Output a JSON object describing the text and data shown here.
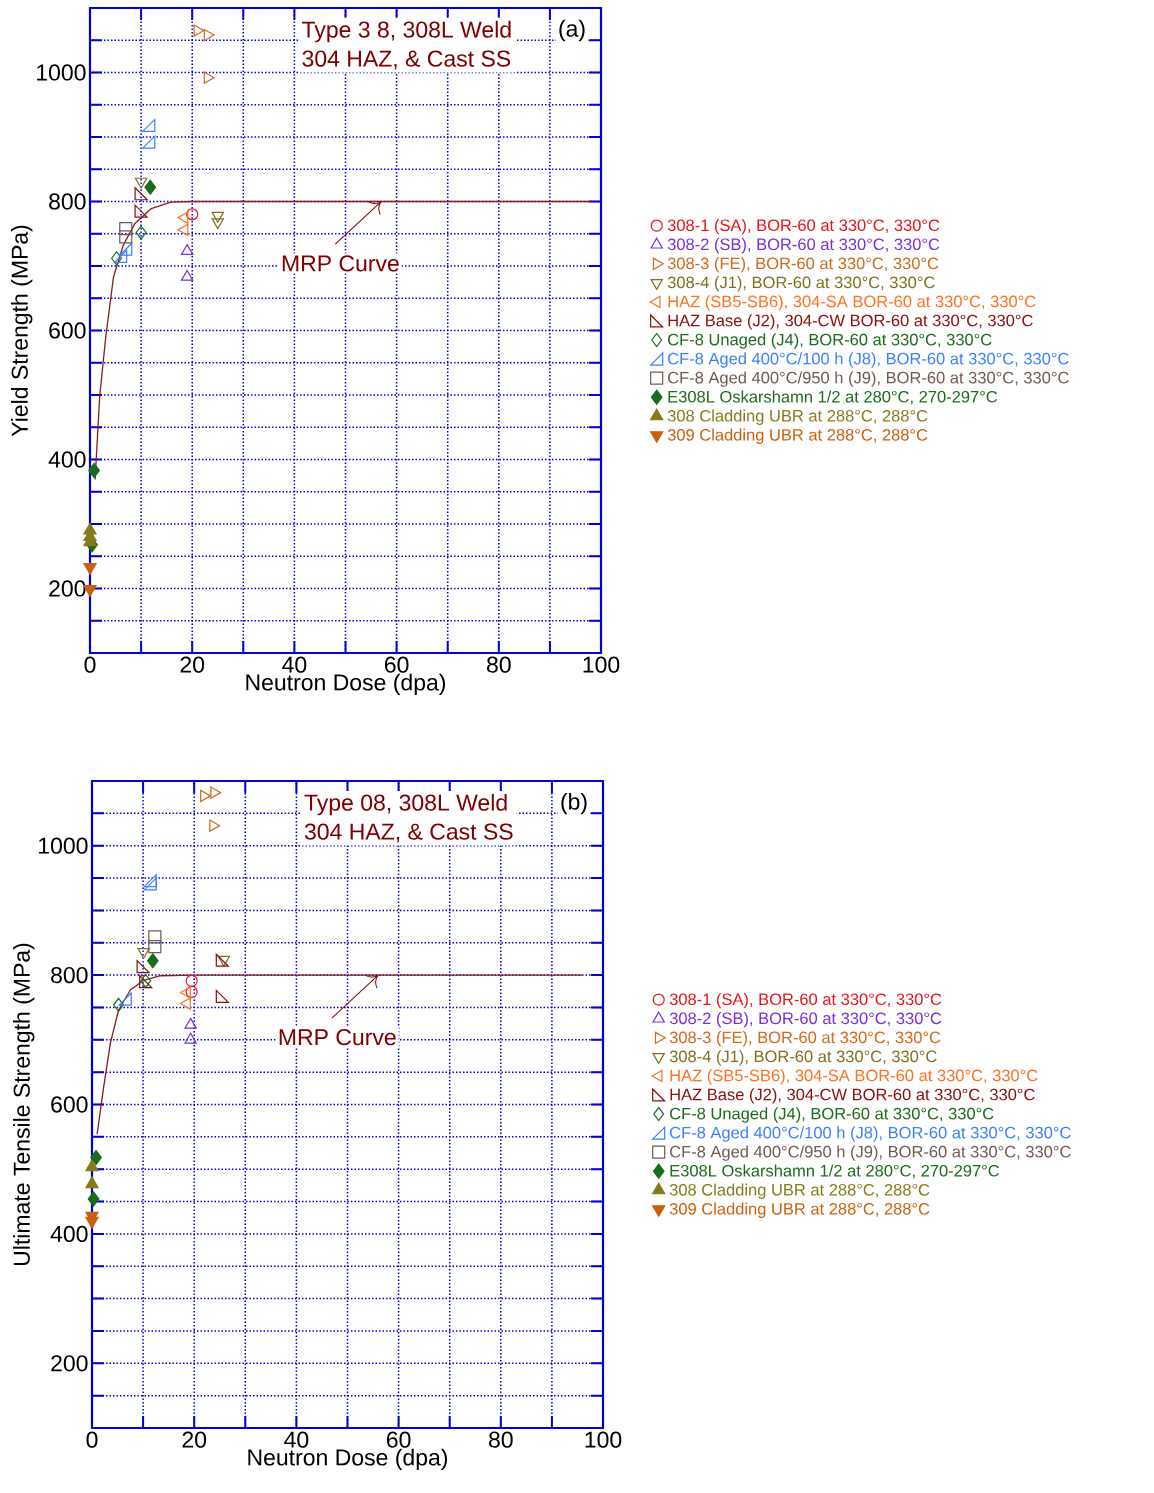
{
  "chart_data": [
    {
      "type": "scatter",
      "title": "Type 3  8, 308L Weld",
      "subtitle": "304 HAZ, & Cast SS",
      "xlabel": "Neutron Dose (dpa)",
      "ylabel": "Yield Strength (MPa)",
      "xlim": [
        0,
        100
      ],
      "ylim": [
        100,
        1100
      ],
      "xticks": [
        0,
        {
          "value": 10,
          "label": null
        },
        20,
        {
          "value": 30,
          "label": null
        },
        40,
        {
          "value": 50,
          "label": null
        },
        60,
        {
          "value": 70,
          "label": null
        },
        80,
        {
          "value": 90,
          "label": null
        },
        100
      ],
      "yticks": [
        {
          "value": 100,
          "label": null
        },
        {
          "value": 150,
          "label": null
        },
        200,
        {
          "value": 250,
          "label": null
        },
        {
          "value": 300,
          "label": null
        },
        {
          "value": 350,
          "label": null
        },
        400,
        {
          "value": 450,
          "label": null
        },
        {
          "value": 500,
          "label": null
        },
        {
          "value": 550,
          "label": null
        },
        600,
        {
          "value": 650,
          "label": null
        },
        {
          "value": 700,
          "label": null
        },
        {
          "value": 750,
          "label": null
        },
        800,
        {
          "value": 850,
          "label": null
        },
        {
          "value": 900,
          "label": null
        },
        {
          "value": 950,
          "label": null
        },
        1000,
        {
          "value": 1050,
          "label": null
        },
        {
          "value": 1100,
          "label": null
        }
      ],
      "grid": true,
      "legend": "right",
      "annotations": [
        {
          "text": "MRP Curve",
          "x": 57,
          "y": 800
        },
        "(a)"
      ],
      "series": [
        {
          "name": "308-1 (SA), BOR-60 at 330°C, 330°C",
          "color": "#e8131b",
          "marker": "circle",
          "x": [
            20
          ],
          "values": [
            780
          ]
        },
        {
          "name": "308-2 (SB), BOR-60 at 330°C, 330°C",
          "color": "#7a2ee0",
          "marker": "triangle",
          "x": [
            19,
            19
          ],
          "values": [
            723,
            683
          ]
        },
        {
          "name": "308-3 (FE), BOR-60 at 330°C, 330°C",
          "color": "#d2691e",
          "marker": "triangle-right",
          "x": [
            21,
            23,
            23
          ],
          "values": [
            1065,
            1058,
            992
          ]
        },
        {
          "name": "308-4 (J1), BOR-60 at 330°C, 330°C",
          "color": "#7f7020",
          "marker": "triangle-down",
          "x": [
            10,
            25,
            25
          ],
          "values": [
            831,
            778,
            768
          ]
        },
        {
          "name": "HAZ (SB5-SB6), 304-SA BOR-60 at 330°C, 330°C",
          "color": "#ff7020",
          "marker": "triangle-left",
          "x": [
            18.5,
            18.5
          ],
          "values": [
            775,
            756
          ]
        },
        {
          "name": "HAZ Base (J2), 304-CW BOR-60 at 330°C, 330°C",
          "color": "#8b1010",
          "marker": "triangle-bottom-left",
          "x": [
            10,
            10
          ],
          "values": [
            812,
            785
          ]
        },
        {
          "name": "CF-8 Unaged (J4), BOR-60 at 330°C, 330°C",
          "color": "#1a6b1a",
          "marker": "diamond",
          "x": [
            10,
            5.2
          ],
          "values": [
            752,
            712
          ]
        },
        {
          "name": "CF-8 Aged 400°C/100 h (J8), BOR-60 at 330°C, 330°C",
          "color": "#3a80ff",
          "marker": "triangle-bottom-right",
          "x": [
            11.5,
            11.5,
            6,
            7
          ],
          "values": [
            918,
            892,
            715,
            726
          ]
        },
        {
          "name": "CF-8 Aged 400°C/950 h (J9), BOR-60 at 330°C, 330°C",
          "color": "#705a50",
          "marker": "square",
          "x": [
            7,
            7
          ],
          "values": [
            758,
            745
          ]
        },
        {
          "name": "E308L Oskarshamn 1/2 at 280°C, 270-297°C",
          "color": "#1a6b1a",
          "marker": "diamond-filled",
          "x": [
            11.8,
            0.8,
            0.4
          ],
          "values": [
            822,
            383,
            268
          ]
        },
        {
          "name": "308 Cladding UBR at 288°C, 288°C",
          "color": "#857a1a",
          "marker": "triangle-filled",
          "x": [
            0,
            0,
            0
          ],
          "values": [
            290,
            280,
            272
          ]
        },
        {
          "name": "309 Cladding UBR at 288°C, 288°C",
          "color": "#cc5f0a",
          "marker": "triangle-down-filled",
          "x": [
            0,
            0
          ],
          "values": [
            233,
            199
          ]
        },
        {
          "type": "line",
          "color": "#8b1a1a",
          "marker": "none",
          "x": [
            1,
            1.9,
            3.1,
            4.6,
            6.5,
            8.8,
            12,
            15.8,
            20,
            98
          ],
          "values": [
            369,
            498,
            591,
            683,
            732,
            766,
            789,
            799,
            800,
            800
          ]
        }
      ]
    },
    {
      "type": "scatter",
      "title": "Type   08, 308L Weld",
      "subtitle": "304 HAZ, & Cast SS",
      "xlabel": "Neutron Dose (dpa)",
      "ylabel": "Ultimate Tensile Strength (MPa)",
      "xlim": [
        0,
        100
      ],
      "ylim": [
        100,
        1100
      ],
      "xticks": [
        0,
        {
          "value": 10,
          "label": null
        },
        20,
        {
          "value": 30,
          "label": null
        },
        40,
        {
          "value": 50,
          "label": null
        },
        60,
        {
          "value": 70,
          "label": null
        },
        80,
        {
          "value": 90,
          "label": null
        },
        100
      ],
      "yticks": [
        {
          "value": 100,
          "label": null
        },
        {
          "value": 150,
          "label": null
        },
        200,
        {
          "value": 250,
          "label": null
        },
        {
          "value": 300,
          "label": null
        },
        {
          "value": 350,
          "label": null
        },
        400,
        {
          "value": 450,
          "label": null
        },
        {
          "value": 500,
          "label": null
        },
        {
          "value": 550,
          "label": null
        },
        600,
        {
          "value": 650,
          "label": null
        },
        {
          "value": 700,
          "label": null
        },
        {
          "value": 750,
          "label": null
        },
        800,
        {
          "value": 850,
          "label": null
        },
        {
          "value": 900,
          "label": null
        },
        {
          "value": 950,
          "label": null
        },
        1000,
        {
          "value": 1050,
          "label": null
        },
        {
          "value": 1100,
          "label": null
        }
      ],
      "grid": true,
      "legend": "right",
      "annotations": [
        {
          "text": "MRP Curve",
          "x": 56,
          "y": 800
        },
        "(b)"
      ],
      "series": [
        {
          "name": "308-1 (SA), BOR-60 at 330°C, 330°C",
          "color": "#e8131b",
          "marker": "circle",
          "x": [
            19.5,
            19.5
          ],
          "values": [
            791,
            774
          ]
        },
        {
          "name": "308-2 (SB), BOR-60 at 330°C, 330°C",
          "color": "#7a2ee0",
          "marker": "triangle",
          "x": [
            19.3,
            19.3
          ],
          "values": [
            723,
            700
          ]
        },
        {
          "name": "308-3 (FE), BOR-60 at 330°C, 330°C",
          "color": "#d2691e",
          "marker": "triangle-right",
          "x": [
            21.9,
            23.9,
            23.7
          ],
          "values": [
            1077,
            1082,
            1031
          ]
        },
        {
          "name": "308-4 (J1), BOR-60 at 330°C, 330°C",
          "color": "#7f7020",
          "marker": "triangle-down",
          "x": [
            10.1,
            25.8
          ],
          "values": [
            836,
            824
          ]
        },
        {
          "name": "HAZ (SB5-SB6), 304-SA BOR-60 at 330°C, 330°C",
          "color": "#ff7020",
          "marker": "triangle-left",
          "x": [
            18.6,
            18.6
          ],
          "values": [
            773,
            756
          ]
        },
        {
          "name": "HAZ Base (J2), 304-CW BOR-60 at 330°C, 330°C",
          "color": "#8b1010",
          "marker": "triangle-bottom-left",
          "x": [
            10,
            10.5,
            25.5,
            25.5
          ],
          "values": [
            813,
            790,
            823,
            767
          ]
        },
        {
          "name": "CF-8 Unaged (J4), BOR-60 at 330°C, 330°C",
          "color": "#1a6b1a",
          "marker": "diamond",
          "x": [
            10.5,
            5.2
          ],
          "values": [
            791,
            754
          ]
        },
        {
          "name": "CF-8 Aged 400°C/100 h (J8), BOR-60 at 330°C, 330°C",
          "color": "#3a80ff",
          "marker": "triangle-bottom-right",
          "x": [
            11.4,
            11.4,
            6.5
          ],
          "values": [
            946,
            941,
            763
          ]
        },
        {
          "name": "CF-8 Aged 400°C/950 h (J9), BOR-60 at 330°C, 330°C",
          "color": "#705a50",
          "marker": "square",
          "x": [
            12.3,
            12.3
          ],
          "values": [
            859,
            844
          ]
        },
        {
          "name": "E308L Oskarshamn 1/2 at 280°C, 270-297°C",
          "color": "#1a6b1a",
          "marker": "diamond-filled",
          "x": [
            11.9,
            0.8,
            0.3
          ],
          "values": [
            822,
            518,
            454
          ]
        },
        {
          "name": "308 Cladding UBR at 288°C, 288°C",
          "color": "#857a1a",
          "marker": "triangle-filled",
          "x": [
            0,
            0
          ],
          "values": [
            503,
            477
          ]
        },
        {
          "name": "309 Cladding UBR at 288°C, 288°C",
          "color": "#cc5f0a",
          "marker": "triangle-down-filled",
          "x": [
            0,
            0
          ],
          "values": [
            428,
            420
          ]
        },
        {
          "type": "line",
          "color": "#8b1a1a",
          "marker": "none",
          "x": [
            1,
            2.3,
            3.6,
            5.2,
            7.5,
            10.1,
            13.4,
            20,
            96
          ],
          "values": [
            554,
            628,
            695,
            746,
            777,
            792,
            799,
            800,
            800
          ]
        }
      ]
    }
  ]
}
